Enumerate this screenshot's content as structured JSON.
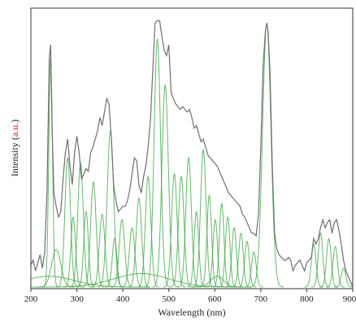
{
  "chart_data": {
    "type": "line",
    "title": "",
    "xlabel": "Wavelength (nm)",
    "ylabel": "Intensity (a.u.)",
    "ylabel_parts": {
      "prefix": "Intensity (",
      "unit": "a.u.",
      "suffix": ")"
    },
    "xlim": [
      200,
      900
    ],
    "ylim": [
      0,
      1
    ],
    "x_ticks": [
      200,
      300,
      400,
      500,
      600,
      700,
      800,
      900
    ],
    "grid": false,
    "legend": "none",
    "series": [
      {
        "role": "measured spectrum",
        "color": "#6e6e6e",
        "x": [
          200,
          205,
          210,
          215,
          220,
          225,
          230,
          235,
          240,
          243,
          246,
          250,
          255,
          260,
          265,
          270,
          275,
          280,
          285,
          290,
          295,
          300,
          305,
          310,
          315,
          320,
          325,
          330,
          335,
          340,
          345,
          350,
          355,
          360,
          365,
          370,
          375,
          380,
          385,
          390,
          395,
          400,
          405,
          410,
          415,
          420,
          425,
          430,
          435,
          440,
          445,
          450,
          455,
          460,
          465,
          470,
          475,
          480,
          485,
          490,
          495,
          500,
          505,
          510,
          515,
          520,
          525,
          530,
          535,
          540,
          545,
          550,
          555,
          560,
          565,
          570,
          575,
          580,
          585,
          590,
          595,
          600,
          605,
          610,
          615,
          620,
          625,
          630,
          635,
          640,
          645,
          650,
          655,
          660,
          665,
          670,
          675,
          680,
          685,
          690,
          695,
          700,
          705,
          710,
          713,
          716,
          720,
          725,
          730,
          735,
          740,
          745,
          750,
          755,
          760,
          765,
          770,
          775,
          780,
          785,
          790,
          795,
          800,
          805,
          810,
          815,
          820,
          825,
          830,
          835,
          840,
          845,
          850,
          855,
          860,
          865,
          870,
          875,
          880,
          885,
          890,
          895,
          900
        ],
        "y": [
          0.08,
          0.1,
          0.06,
          0.09,
          0.12,
          0.07,
          0.13,
          0.35,
          0.85,
          0.9,
          0.6,
          0.35,
          0.3,
          0.26,
          0.28,
          0.4,
          0.5,
          0.55,
          0.45,
          0.38,
          0.5,
          0.56,
          0.5,
          0.4,
          0.42,
          0.44,
          0.43,
          0.5,
          0.52,
          0.55,
          0.58,
          0.63,
          0.6,
          0.65,
          0.7,
          0.68,
          0.55,
          0.38,
          0.32,
          0.28,
          0.29,
          0.3,
          0.3,
          0.32,
          0.36,
          0.42,
          0.48,
          0.47,
          0.38,
          0.35,
          0.41,
          0.45,
          0.52,
          0.62,
          0.8,
          0.98,
          0.99,
          0.99,
          0.93,
          0.88,
          0.86,
          0.9,
          0.72,
          0.7,
          0.68,
          0.67,
          0.66,
          0.67,
          0.66,
          0.65,
          0.66,
          0.63,
          0.59,
          0.6,
          0.57,
          0.54,
          0.55,
          0.52,
          0.49,
          0.48,
          0.47,
          0.46,
          0.45,
          0.43,
          0.41,
          0.39,
          0.37,
          0.35,
          0.34,
          0.33,
          0.32,
          0.31,
          0.3,
          0.27,
          0.26,
          0.24,
          0.22,
          0.2,
          0.2,
          0.19,
          0.27,
          0.52,
          0.82,
          0.95,
          0.98,
          0.95,
          0.8,
          0.45,
          0.2,
          0.14,
          0.12,
          0.11,
          0.1,
          0.1,
          0.11,
          0.1,
          0.06,
          0.08,
          0.09,
          0.1,
          0.08,
          0.06,
          0.09,
          0.1,
          0.11,
          0.18,
          0.16,
          0.18,
          0.22,
          0.25,
          0.22,
          0.24,
          0.25,
          0.2,
          0.24,
          0.25,
          0.21,
          0.16,
          0.1,
          0.06,
          0.04,
          0.02,
          0.0
        ]
      },
      {
        "role": "fitted components",
        "color": "#3fa642",
        "components": [
          {
            "center": 243,
            "height": 0.85,
            "width": 4
          },
          {
            "center": 255,
            "height": 0.14,
            "width": 10
          },
          {
            "center": 280,
            "height": 0.48,
            "width": 6
          },
          {
            "center": 292,
            "height": 0.26,
            "width": 5
          },
          {
            "center": 308,
            "height": 0.46,
            "width": 6
          },
          {
            "center": 320,
            "height": 0.28,
            "width": 5
          },
          {
            "center": 336,
            "height": 0.39,
            "width": 6
          },
          {
            "center": 355,
            "height": 0.27,
            "width": 6
          },
          {
            "center": 373,
            "height": 0.58,
            "width": 7
          },
          {
            "center": 382,
            "height": 0.18,
            "width": 5
          },
          {
            "center": 398,
            "height": 0.25,
            "width": 6
          },
          {
            "center": 420,
            "height": 0.22,
            "width": 6
          },
          {
            "center": 435,
            "height": 0.33,
            "width": 6
          },
          {
            "center": 455,
            "height": 0.41,
            "width": 6
          },
          {
            "center": 475,
            "height": 0.92,
            "width": 7
          },
          {
            "center": 492,
            "height": 0.75,
            "width": 7
          },
          {
            "center": 512,
            "height": 0.42,
            "width": 6
          },
          {
            "center": 527,
            "height": 0.41,
            "width": 6
          },
          {
            "center": 543,
            "height": 0.48,
            "width": 6
          },
          {
            "center": 560,
            "height": 0.28,
            "width": 5
          },
          {
            "center": 575,
            "height": 0.51,
            "width": 6
          },
          {
            "center": 588,
            "height": 0.34,
            "width": 5
          },
          {
            "center": 601,
            "height": 0.25,
            "width": 5
          },
          {
            "center": 615,
            "height": 0.31,
            "width": 5
          },
          {
            "center": 628,
            "height": 0.26,
            "width": 5
          },
          {
            "center": 642,
            "height": 0.22,
            "width": 5
          },
          {
            "center": 657,
            "height": 0.2,
            "width": 5
          },
          {
            "center": 670,
            "height": 0.17,
            "width": 5
          },
          {
            "center": 685,
            "height": 0.13,
            "width": 5
          },
          {
            "center": 713,
            "height": 0.98,
            "width": 9
          },
          {
            "center": 815,
            "height": 0.16,
            "width": 5
          },
          {
            "center": 830,
            "height": 0.2,
            "width": 5
          },
          {
            "center": 848,
            "height": 0.18,
            "width": 5
          },
          {
            "center": 862,
            "height": 0.15,
            "width": 5
          },
          {
            "center": 880,
            "height": 0.07,
            "width": 5
          },
          {
            "center": 240,
            "height": 0.04,
            "width": 55
          },
          {
            "center": 440,
            "height": 0.05,
            "width": 60
          },
          {
            "center": 605,
            "height": 0.04,
            "width": 14
          }
        ]
      }
    ]
  }
}
